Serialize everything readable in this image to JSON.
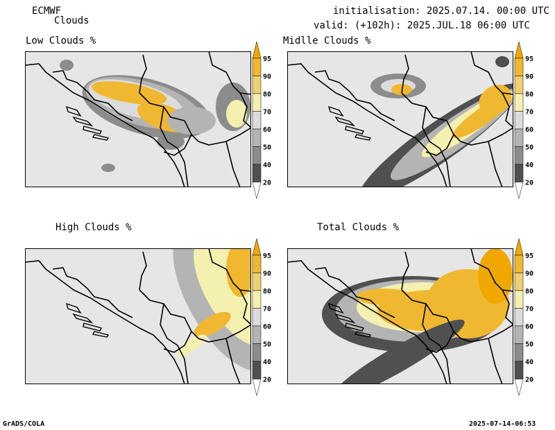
{
  "header": {
    "model": "ECMWF",
    "product": "Clouds",
    "init": "initialisation: 2025.07.14. 00:00 UTC",
    "valid": "valid: (+102h): 2025.JUL.18 06:00 UTC"
  },
  "panels": [
    {
      "id": "low",
      "title": "Low Clouds %"
    },
    {
      "id": "mid",
      "title": "Midlle Clouds %"
    },
    {
      "id": "high",
      "title": "High Clouds %"
    },
    {
      "id": "total",
      "title": "Total Clouds %"
    }
  ],
  "colorbar": {
    "levels": [
      "95",
      "90",
      "80",
      "70",
      "60",
      "50",
      "40",
      "20"
    ],
    "colors": {
      "above95": "#f0a800",
      "90_95": "#f0b830",
      "80_90": "#f0d070",
      "70_80": "#f4f0b0",
      "60_70": "#dcdcdc",
      "50_60": "#b4b4b4",
      "40_50": "#8c8c8c",
      "20_40": "#505050",
      "below20": "#ffffff"
    }
  },
  "footer": {
    "left": "GrADS/COLA",
    "right": "2025-07-14-06:53"
  }
}
